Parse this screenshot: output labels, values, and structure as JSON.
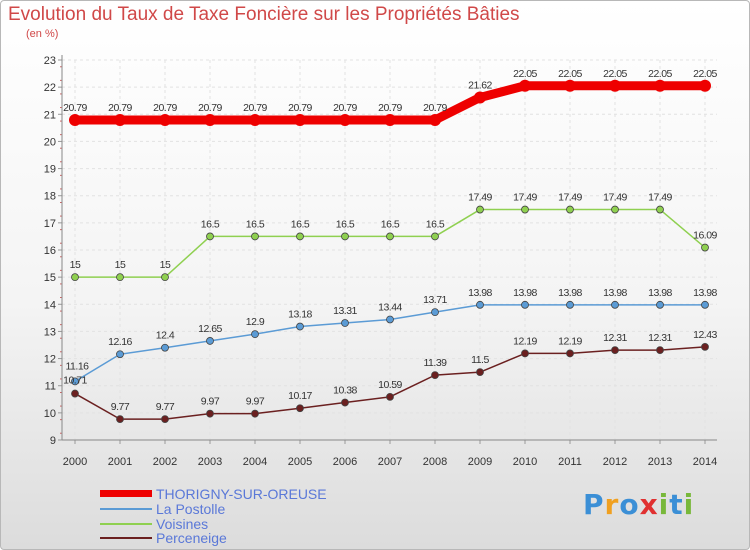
{
  "header": {
    "title": "Evolution du Taux de Taxe Foncière sur les Propriétés Bâties",
    "subtitle": "(en %)"
  },
  "logo": {
    "text": "Proxiti",
    "colors": [
      "#3b8fd6",
      "#f0a020",
      "#3b8fd6",
      "#e03030",
      "#78b83a",
      "#3b8fd6",
      "#78b83a"
    ]
  },
  "chart_data": {
    "type": "line",
    "title": "Evolution du Taux de Taxe Foncière sur les Propriétés Bâties",
    "subtitle": "(en %)",
    "xlabel": "",
    "ylabel": "",
    "x": [
      "2000",
      "2001",
      "2002",
      "2003",
      "2004",
      "2005",
      "2006",
      "2007",
      "2008",
      "2009",
      "2010",
      "2011",
      "2012",
      "2013",
      "2014"
    ],
    "ylim": [
      9,
      23
    ],
    "yticks": [
      "9",
      "10",
      "11",
      "12",
      "13",
      "14",
      "15",
      "16",
      "17",
      "18",
      "19",
      "20",
      "21",
      "22",
      "23"
    ],
    "grid": true,
    "legend_position": "bottom-left",
    "series": [
      {
        "name": "THORIGNY-SUR-OREUSE",
        "color": "#ee0000",
        "values": [
          20.79,
          20.79,
          20.79,
          20.79,
          20.79,
          20.79,
          20.79,
          20.79,
          20.79,
          21.62,
          22.05,
          22.05,
          22.05,
          22.05,
          22.05
        ],
        "labels": [
          "20.79",
          "20.79",
          "20.79",
          "20.79",
          "20.79",
          "20.79",
          "20.79",
          "20.79",
          "20.79",
          "21.62",
          "22.05",
          "22.05",
          "22.05",
          "22.05",
          "22.05"
        ]
      },
      {
        "name": "La Postolle",
        "color": "#5b9bd5",
        "values": [
          11.16,
          12.16,
          12.4,
          12.65,
          12.9,
          13.18,
          13.31,
          13.44,
          13.71,
          13.98,
          13.98,
          13.98,
          13.98,
          13.98,
          13.98
        ],
        "labels": [
          "11.16",
          "12.16",
          "12.4",
          "12.65",
          "12.9",
          "13.18",
          "13.31",
          "13.44",
          "13.71",
          "13.98",
          "13.98",
          "13.98",
          "13.98",
          "13.98",
          "13.98"
        ]
      },
      {
        "name": "Voisines",
        "color": "#8fd050",
        "values": [
          15,
          15,
          15,
          16.5,
          16.5,
          16.5,
          16.5,
          16.5,
          16.5,
          17.49,
          17.49,
          17.49,
          17.49,
          17.49,
          16.09
        ],
        "labels": [
          "15",
          "15",
          "15",
          "16.5",
          "16.5",
          "16.5",
          "16.5",
          "16.5",
          "16.5",
          "17.49",
          "17.49",
          "17.49",
          "17.49",
          "17.49",
          "16.09"
        ]
      },
      {
        "name": "Perceneige",
        "color": "#6b2020",
        "values": [
          10.71,
          9.77,
          9.77,
          9.97,
          9.97,
          10.17,
          10.38,
          10.59,
          11.39,
          11.5,
          12.19,
          12.19,
          12.31,
          12.31,
          12.43
        ],
        "labels": [
          "10.71",
          "9.77",
          "9.77",
          "9.97",
          "9.97",
          "10.17",
          "10.38",
          "10.59",
          "11.39",
          "11.5",
          "12.19",
          "12.19",
          "12.31",
          "12.31",
          "12.43"
        ]
      }
    ]
  }
}
